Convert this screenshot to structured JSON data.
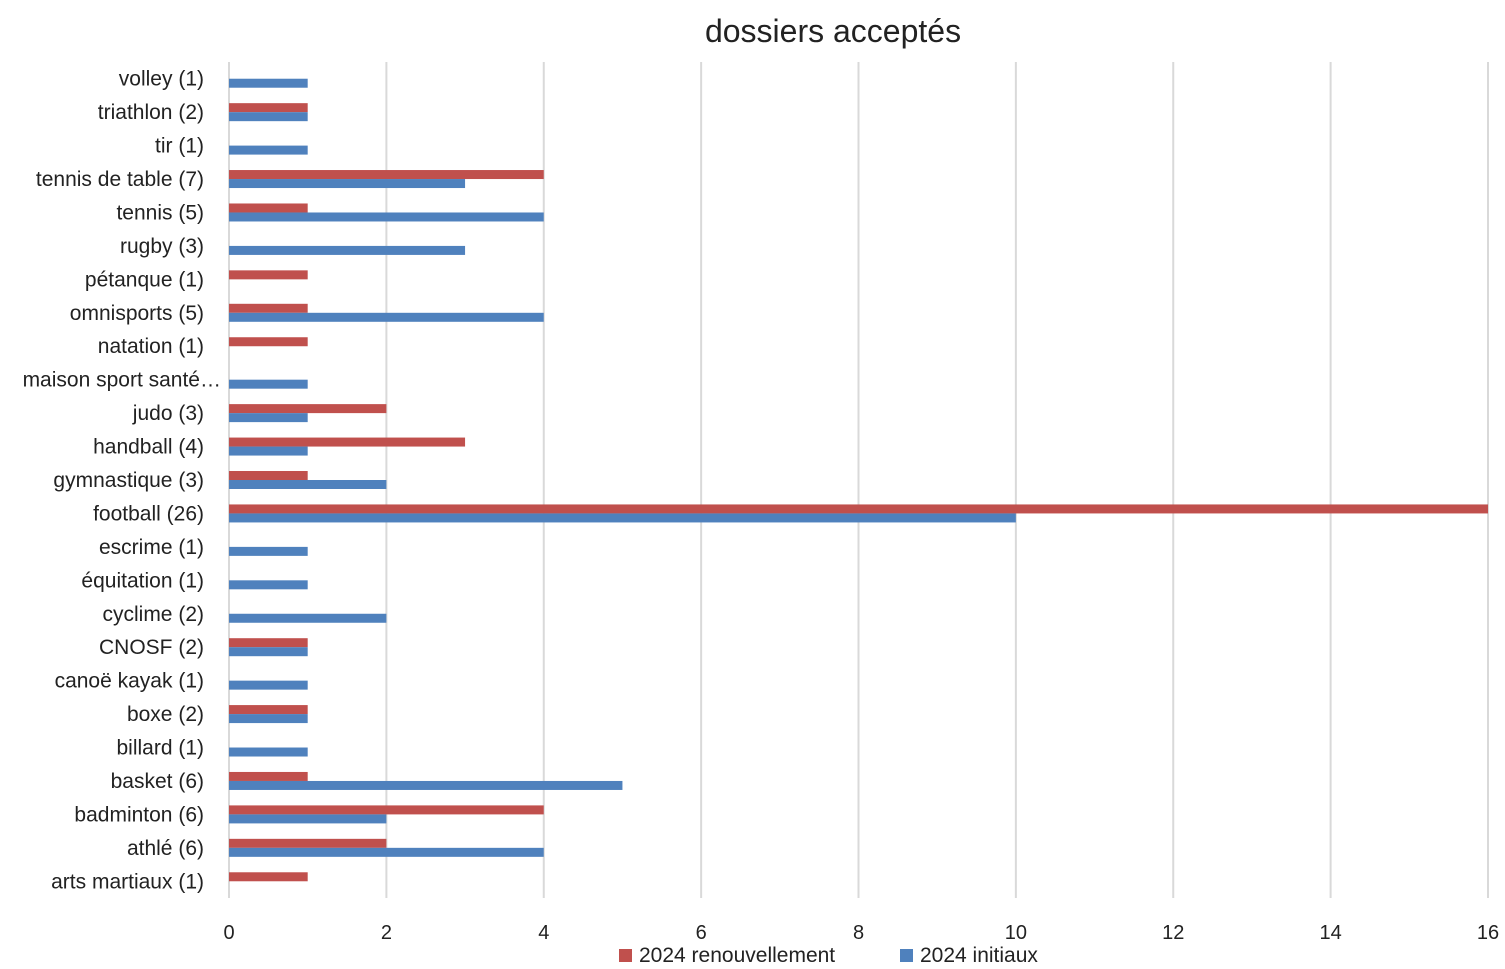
{
  "chart_data": {
    "type": "bar",
    "orientation": "horizontal",
    "title": "dossiers acceptés",
    "xlabel": "",
    "ylabel": "",
    "xlim": [
      0,
      16
    ],
    "x_ticks": [
      0,
      2,
      4,
      6,
      8,
      10,
      12,
      14,
      16
    ],
    "grid": "vertical",
    "legend_position": "bottom",
    "categories": [
      "volley (1)",
      "triathlon (2)",
      "tir (1)",
      "tennis de table (7)",
      "tennis (5)",
      "rugby (3)",
      "pétanque (1)",
      "omnisports (5)",
      "natation (1)",
      "maison sport santé…",
      "judo (3)",
      "handball (4)",
      "gymnastique (3)",
      "football (26)",
      "escrime  (1)",
      "équitation (1)",
      "cyclime  (2)",
      "CNOSF (2)",
      "canoë kayak (1)",
      "boxe (2)",
      "billard (1)",
      "basket (6)",
      "badminton (6)",
      "athlé (6)",
      "arts martiaux (1)"
    ],
    "series": [
      {
        "name": "2024 renouvellement",
        "color": "#c0504d",
        "values": [
          0,
          1,
          0,
          4,
          1,
          0,
          1,
          1,
          1,
          0,
          2,
          3,
          1,
          16,
          0,
          0,
          0,
          1,
          0,
          1,
          0,
          1,
          4,
          2,
          1
        ]
      },
      {
        "name": "2024 initiaux",
        "color": "#4f81bd",
        "values": [
          1,
          1,
          1,
          3,
          4,
          3,
          0,
          4,
          0,
          1,
          1,
          1,
          2,
          10,
          1,
          1,
          2,
          1,
          1,
          1,
          1,
          5,
          2,
          4,
          0
        ]
      }
    ]
  }
}
